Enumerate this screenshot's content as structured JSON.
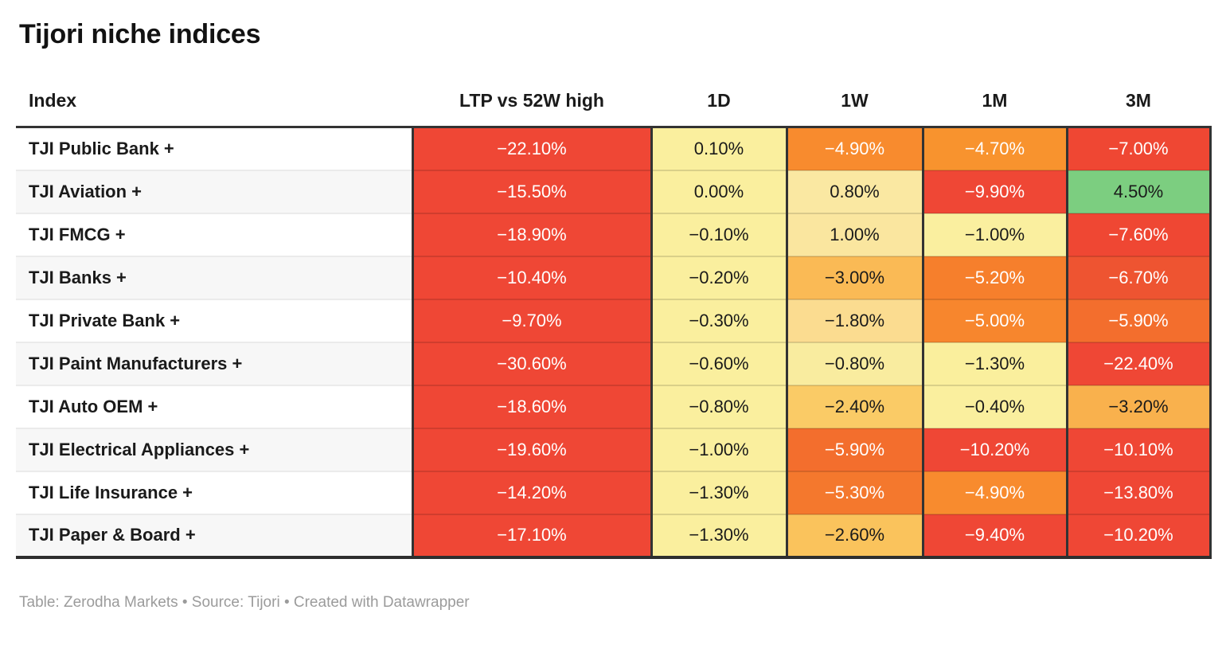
{
  "title": "Tijori niche indices",
  "table": {
    "columns": [
      "Index",
      "LTP vs 52W high",
      "1D",
      "1W",
      "1M",
      "3M"
    ],
    "rows": [
      {
        "index": "TJI Public Bank +",
        "cells": [
          {
            "v": "−22.10%",
            "bg": "#EF4735",
            "fg": "#ffffff"
          },
          {
            "v": "0.10%",
            "bg": "#FAEF9E",
            "fg": "#1a1a1a"
          },
          {
            "v": "−4.90%",
            "bg": "#F88B2E",
            "fg": "#ffffff"
          },
          {
            "v": "−4.70%",
            "bg": "#F8932E",
            "fg": "#ffffff"
          },
          {
            "v": "−7.00%",
            "bg": "#EF4733",
            "fg": "#ffffff"
          }
        ]
      },
      {
        "index": "TJI Aviation +",
        "cells": [
          {
            "v": "−15.50%",
            "bg": "#EF4735",
            "fg": "#ffffff"
          },
          {
            "v": "0.00%",
            "bg": "#FAEF9E",
            "fg": "#1a1a1a"
          },
          {
            "v": "0.80%",
            "bg": "#FAE8A2",
            "fg": "#1a1a1a"
          },
          {
            "v": "−9.90%",
            "bg": "#EF4735",
            "fg": "#ffffff"
          },
          {
            "v": "4.50%",
            "bg": "#7CCE80",
            "fg": "#1a1a1a"
          }
        ]
      },
      {
        "index": "TJI FMCG +",
        "cells": [
          {
            "v": "−18.90%",
            "bg": "#EF4735",
            "fg": "#ffffff"
          },
          {
            "v": "−0.10%",
            "bg": "#FAEF9E",
            "fg": "#1a1a1a"
          },
          {
            "v": "1.00%",
            "bg": "#FAE69F",
            "fg": "#1a1a1a"
          },
          {
            "v": "−1.00%",
            "bg": "#FAEF9F",
            "fg": "#1a1a1a"
          },
          {
            "v": "−7.60%",
            "bg": "#EF4733",
            "fg": "#ffffff"
          }
        ]
      },
      {
        "index": "TJI Banks +",
        "cells": [
          {
            "v": "−10.40%",
            "bg": "#EF4735",
            "fg": "#ffffff"
          },
          {
            "v": "−0.20%",
            "bg": "#FAEF9E",
            "fg": "#1a1a1a"
          },
          {
            "v": "−3.00%",
            "bg": "#FABA55",
            "fg": "#1a1a1a"
          },
          {
            "v": "−5.20%",
            "bg": "#F67F2C",
            "fg": "#ffffff"
          },
          {
            "v": "−6.70%",
            "bg": "#EE5431",
            "fg": "#ffffff"
          }
        ]
      },
      {
        "index": "TJI Private Bank +",
        "cells": [
          {
            "v": "−9.70%",
            "bg": "#EF4735",
            "fg": "#ffffff"
          },
          {
            "v": "−0.30%",
            "bg": "#FAEF9E",
            "fg": "#1a1a1a"
          },
          {
            "v": "−1.80%",
            "bg": "#FBDC90",
            "fg": "#1a1a1a"
          },
          {
            "v": "−5.00%",
            "bg": "#F7862D",
            "fg": "#ffffff"
          },
          {
            "v": "−5.90%",
            "bg": "#F36E2D",
            "fg": "#ffffff"
          }
        ]
      },
      {
        "index": "TJI Paint Manufacturers +",
        "cells": [
          {
            "v": "−30.60%",
            "bg": "#EF4735",
            "fg": "#ffffff"
          },
          {
            "v": "−0.60%",
            "bg": "#FAEF9E",
            "fg": "#1a1a1a"
          },
          {
            "v": "−0.80%",
            "bg": "#F9EC9F",
            "fg": "#1a1a1a"
          },
          {
            "v": "−1.30%",
            "bg": "#FAEF9D",
            "fg": "#1a1a1a"
          },
          {
            "v": "−22.40%",
            "bg": "#EF4735",
            "fg": "#ffffff"
          }
        ]
      },
      {
        "index": "TJI Auto OEM +",
        "cells": [
          {
            "v": "−18.60%",
            "bg": "#EF4735",
            "fg": "#ffffff"
          },
          {
            "v": "−0.80%",
            "bg": "#FAEF9E",
            "fg": "#1a1a1a"
          },
          {
            "v": "−2.40%",
            "bg": "#FACB66",
            "fg": "#1a1a1a"
          },
          {
            "v": "−0.40%",
            "bg": "#FAEF9E",
            "fg": "#1a1a1a"
          },
          {
            "v": "−3.20%",
            "bg": "#F9B14D",
            "fg": "#1a1a1a"
          }
        ]
      },
      {
        "index": "TJI Electrical Appliances +",
        "cells": [
          {
            "v": "−19.60%",
            "bg": "#EF4735",
            "fg": "#ffffff"
          },
          {
            "v": "−1.00%",
            "bg": "#FAEF9E",
            "fg": "#1a1a1a"
          },
          {
            "v": "−5.90%",
            "bg": "#F36E2D",
            "fg": "#ffffff"
          },
          {
            "v": "−10.20%",
            "bg": "#EF4735",
            "fg": "#ffffff"
          },
          {
            "v": "−10.10%",
            "bg": "#EF4735",
            "fg": "#ffffff"
          }
        ]
      },
      {
        "index": "TJI Life Insurance +",
        "cells": [
          {
            "v": "−14.20%",
            "bg": "#EF4735",
            "fg": "#ffffff"
          },
          {
            "v": "−1.30%",
            "bg": "#FAEF9E",
            "fg": "#1a1a1a"
          },
          {
            "v": "−5.30%",
            "bg": "#F4782D",
            "fg": "#ffffff"
          },
          {
            "v": "−4.90%",
            "bg": "#F88B2E",
            "fg": "#ffffff"
          },
          {
            "v": "−13.80%",
            "bg": "#EF4735",
            "fg": "#ffffff"
          }
        ]
      },
      {
        "index": "TJI Paper & Board +",
        "cells": [
          {
            "v": "−17.10%",
            "bg": "#EF4735",
            "fg": "#ffffff"
          },
          {
            "v": "−1.30%",
            "bg": "#FAEF9E",
            "fg": "#1a1a1a"
          },
          {
            "v": "−2.60%",
            "bg": "#FAC35C",
            "fg": "#1a1a1a"
          },
          {
            "v": "−9.40%",
            "bg": "#EF4735",
            "fg": "#ffffff"
          },
          {
            "v": "−10.20%",
            "bg": "#EF4735",
            "fg": "#ffffff"
          }
        ]
      }
    ]
  },
  "footer": {
    "text": "Table: Zerodha Markets • Source: Tijori • Created with Datawrapper"
  },
  "colors": {
    "negative_red": "#EF4735",
    "orange": "#F88B2E",
    "amber": "#FABA55",
    "pale_yellow": "#FAEF9E",
    "positive_green": "#7CCE80",
    "border_dark": "#333333",
    "row_alt_bg": "#f7f7f7",
    "footer_gray": "#9b9b9b"
  },
  "chart_data": {
    "type": "table",
    "title": "Tijori niche indices",
    "columns": [
      "Index",
      "LTP vs 52W high",
      "1D",
      "1W",
      "1M",
      "3M"
    ],
    "unit": "percent",
    "heatmap": true,
    "rows": [
      [
        "TJI Public Bank +",
        -22.1,
        0.1,
        -4.9,
        -4.7,
        -7.0
      ],
      [
        "TJI Aviation +",
        -15.5,
        0.0,
        0.8,
        -9.9,
        4.5
      ],
      [
        "TJI FMCG +",
        -18.9,
        -0.1,
        1.0,
        -1.0,
        -7.6
      ],
      [
        "TJI Banks +",
        -10.4,
        -0.2,
        -3.0,
        -5.2,
        -6.7
      ],
      [
        "TJI Private Bank +",
        -9.7,
        -0.3,
        -1.8,
        -5.0,
        -5.9
      ],
      [
        "TJI Paint Manufacturers +",
        -30.6,
        -0.6,
        -0.8,
        -1.3,
        -22.4
      ],
      [
        "TJI Auto OEM +",
        -18.6,
        -0.8,
        -2.4,
        -0.4,
        -3.2
      ],
      [
        "TJI Electrical Appliances +",
        -19.6,
        -1.0,
        -5.9,
        -10.2,
        -10.1
      ],
      [
        "TJI Life Insurance +",
        -14.2,
        -1.3,
        -5.3,
        -4.9,
        -13.8
      ],
      [
        "TJI Paper & Board +",
        -17.1,
        -1.3,
        -2.6,
        -9.4,
        -10.2
      ]
    ]
  }
}
